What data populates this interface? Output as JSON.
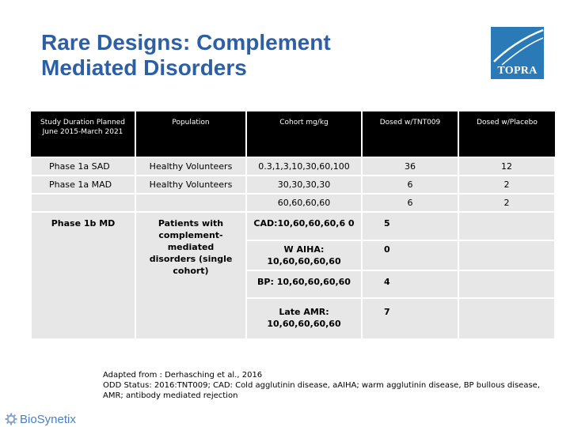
{
  "slide": {
    "title_line1": "Rare Designs: Complement",
    "title_line2": "Mediated Disorders"
  },
  "logo": {
    "text": "TOPRA"
  },
  "table": {
    "headers": [
      "Study Duration Planned June 2015-March 2021",
      "Population",
      "Cohort mg/kg",
      "Dosed w/TNT009",
      "Dosed w/Placebo"
    ],
    "rows": [
      {
        "phase": "Phase 1a SAD",
        "population": "Healthy Volunteers",
        "cohort": "0.3,1,3,10,30,60,100",
        "tnt009": "36",
        "placebo": "12"
      },
      {
        "phase": "Phase 1a MAD",
        "population": "Healthy Volunteers",
        "cohort": "30,30,30,30",
        "tnt009": "6",
        "placebo": "2"
      },
      {
        "phase": "",
        "population": "",
        "cohort": "60,60,60,60",
        "tnt009": "6",
        "placebo": "2"
      }
    ],
    "phase1b": {
      "phase": "Phase 1b MD",
      "population": "Patients with complement-mediated disorders (single cohort)",
      "cohorts": [
        {
          "cohort": "CAD:10,60,60,60,6 0",
          "tnt009": "5",
          "placebo": ""
        },
        {
          "cohort": "W AIHA: 10,60,60,60,60",
          "tnt009": "0",
          "placebo": ""
        },
        {
          "cohort": "BP: 10,60,60,60,60",
          "tnt009": "4",
          "placebo": ""
        },
        {
          "cohort": "Late AMR: 10,60,60,60,60",
          "tnt009": "7",
          "placebo": ""
        }
      ]
    }
  },
  "footnote": {
    "line1": "Adapted from : Derhasching et al., 2016",
    "line2": "ODD Status: 2016:TNT009; CAD: Cold agglutinin disease, aAIHA; warm agglutinin disease, BP bullous disease, AMR; antibody mediated rejection"
  },
  "brand": {
    "text": "BioSynetix",
    "color": "#4a7fc1",
    "icon": "gear-icon"
  },
  "colors": {
    "title": "#2e5fa3",
    "header_bg": "#000000",
    "cell_bg": "#e7e7e7",
    "logo_bg": "#2a7ab8"
  }
}
